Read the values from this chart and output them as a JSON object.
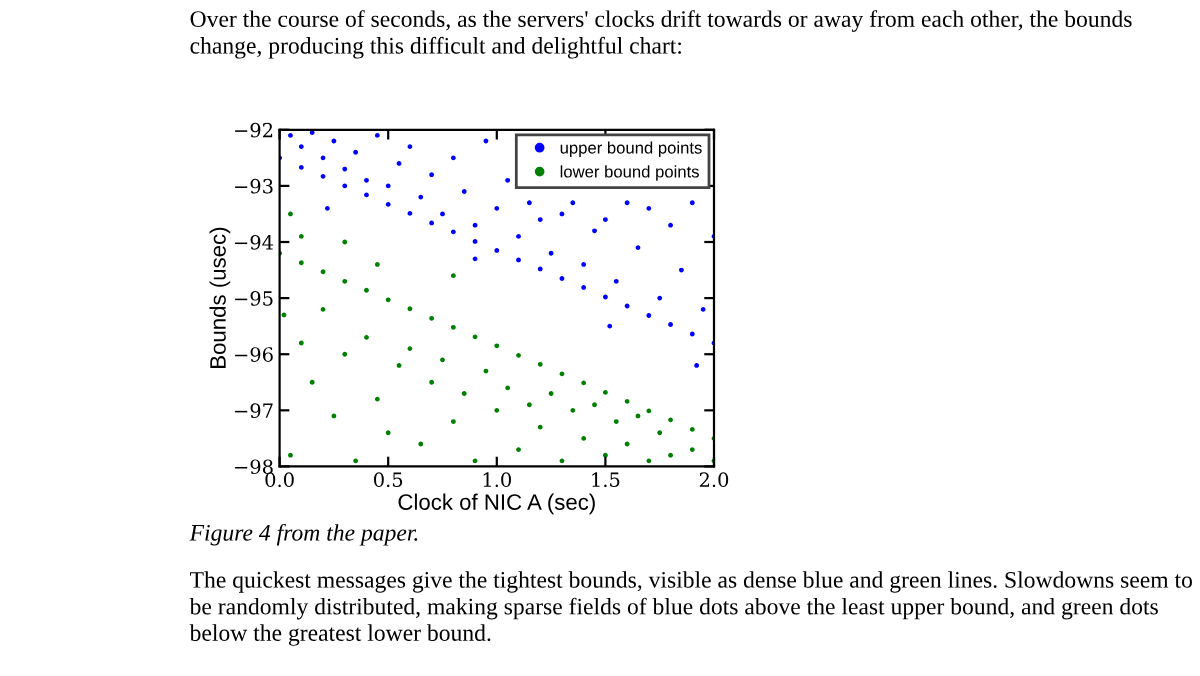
{
  "chart_data": {
    "type": "scatter",
    "xlabel": "Clock of NIC A (sec)",
    "ylabel": "Bounds (usec)",
    "annotations": [
      "Over the course of seconds, as the servers' clocks drift towards or away from each other, the bounds change, producing this difficult and delightful chart:",
      "Figure 4 from the paper.",
      "The quickest messages give the tightest bounds, visible as dense blue and green lines. Slowdowns seem to be randomly distributed, making sparse fields of blue dots above the least upper bound, and green dots below the greatest lower bound."
    ],
    "xlim": [
      0,
      2
    ],
    "ylim": [
      -98,
      -92
    ],
    "xticks": [
      {
        "value": 0,
        "label": "0.0"
      },
      {
        "value": 0.5,
        "label": "0.5"
      },
      {
        "value": 1,
        "label": "1.0"
      },
      {
        "value": 1.5,
        "label": "1.5"
      },
      {
        "value": 2,
        "label": "2.0"
      }
    ],
    "yticks": [
      {
        "value": -98,
        "label": "−98"
      },
      {
        "value": -97,
        "label": "−97"
      },
      {
        "value": -96,
        "label": "−96"
      },
      {
        "value": -95,
        "label": "−95"
      },
      {
        "value": -94,
        "label": "−94"
      },
      {
        "value": -93,
        "label": "−93"
      },
      {
        "value": -92,
        "label": "−92"
      }
    ],
    "legend": "top right",
    "marker": "circle",
    "grid": false,
    "series": [
      {
        "name": "upper bound points",
        "color": "#0000ff",
        "x": [
          0,
          0.1,
          0.2,
          0.3,
          0.4,
          0.5,
          0.6,
          0.7,
          0.8,
          0.9,
          1.0,
          1.1,
          1.2,
          1.3,
          1.4,
          1.5,
          1.6,
          1.7,
          1.8,
          1.9,
          2.0,
          0.05,
          0.1,
          0.15,
          0.2,
          0.25,
          0.3,
          0.35,
          0.4,
          0.45,
          0.5,
          0.55,
          0.6,
          0.65,
          0.7,
          0.75,
          0.8,
          0.85,
          0.9,
          0.95,
          1.0,
          1.05,
          1.1,
          1.15,
          1.2,
          1.25,
          1.3,
          1.35,
          1.4,
          1.45,
          1.5,
          1.55,
          1.6,
          1.65,
          1.7,
          1.75,
          1.8,
          1.85,
          1.9,
          1.95,
          2.0,
          1.52,
          1.92,
          0.9,
          0.22
        ],
        "values": [
          -92.5,
          -92.67,
          -92.83,
          -93.0,
          -93.16,
          -93.33,
          -93.49,
          -93.66,
          -93.82,
          -93.99,
          -94.15,
          -94.32,
          -94.48,
          -94.65,
          -94.81,
          -94.98,
          -95.14,
          -95.31,
          -95.47,
          -95.64,
          -95.8,
          -92.1,
          -92.3,
          -92.05,
          -92.5,
          -92.2,
          -92.7,
          -92.4,
          -92.9,
          -92.1,
          -93.0,
          -92.6,
          -92.3,
          -93.2,
          -92.8,
          -93.5,
          -92.5,
          -93.1,
          -93.7,
          -92.2,
          -93.4,
          -92.9,
          -93.9,
          -93.3,
          -93.6,
          -94.2,
          -93.5,
          -93.3,
          -94.4,
          -93.8,
          -93.6,
          -94.7,
          -93.3,
          -94.1,
          -93.4,
          -95.0,
          -93.7,
          -94.5,
          -93.3,
          -95.2,
          -93.9,
          -95.5,
          -96.2,
          -94.3,
          -93.4
        ]
      },
      {
        "name": "lower bound points",
        "color": "#008000",
        "x": [
          0,
          0.1,
          0.2,
          0.3,
          0.4,
          0.5,
          0.6,
          0.7,
          0.8,
          0.9,
          1.0,
          1.1,
          1.2,
          1.3,
          1.4,
          1.5,
          1.6,
          1.7,
          1.8,
          1.9,
          2.0,
          0.02,
          0.05,
          0.1,
          0.15,
          0.2,
          0.25,
          0.3,
          0.35,
          0.4,
          0.45,
          0.5,
          0.55,
          0.6,
          0.65,
          0.7,
          0.75,
          0.8,
          0.85,
          0.9,
          0.95,
          1.0,
          1.05,
          1.1,
          1.15,
          1.2,
          1.25,
          1.3,
          1.35,
          1.4,
          1.45,
          1.5,
          1.55,
          1.6,
          1.65,
          1.7,
          1.75,
          1.8,
          1.9,
          2.0,
          0.05,
          0.1,
          0.3,
          0.8,
          0.45
        ],
        "values": [
          -94.2,
          -94.37,
          -94.53,
          -94.7,
          -94.86,
          -95.03,
          -95.19,
          -95.36,
          -95.52,
          -95.69,
          -95.85,
          -96.02,
          -96.18,
          -96.35,
          -96.51,
          -96.68,
          -96.84,
          -97.01,
          -97.17,
          -97.34,
          -97.5,
          -95.3,
          -97.8,
          -95.8,
          -96.5,
          -95.2,
          -97.1,
          -96.0,
          -97.9,
          -95.7,
          -96.8,
          -97.4,
          -96.2,
          -95.9,
          -97.6,
          -96.5,
          -96.1,
          -97.2,
          -96.7,
          -97.9,
          -96.3,
          -97.0,
          -96.6,
          -97.7,
          -96.9,
          -97.3,
          -96.7,
          -97.9,
          -97.0,
          -97.5,
          -96.9,
          -97.8,
          -97.2,
          -97.6,
          -97.1,
          -97.9,
          -97.4,
          -97.8,
          -97.7,
          -97.9,
          -93.5,
          -93.9,
          -94.0,
          -94.6,
          -94.4
        ]
      }
    ]
  }
}
